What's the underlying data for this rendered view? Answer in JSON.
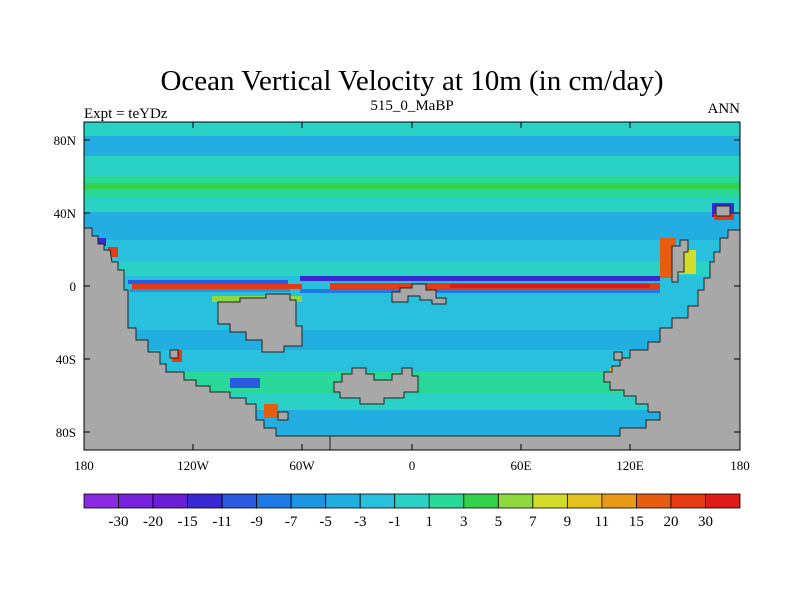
{
  "title": "Ocean Vertical Velocity at 10m (in cm/day)",
  "left_label": "Expt = teYDz",
  "center_label": "515_0_MaBP",
  "right_label": "ANN",
  "lat_ticks": [
    "80N",
    "40N",
    "0",
    "40S",
    "80S"
  ],
  "lon_ticks": [
    "180",
    "120W",
    "60W",
    "0",
    "60E",
    "120E",
    "180"
  ],
  "colorbar": {
    "labels": [
      "-30",
      "-20",
      "-15",
      "-11",
      "-9",
      "-7",
      "-5",
      "-3",
      "-1",
      "1",
      "3",
      "5",
      "7",
      "9",
      "11",
      "15",
      "20",
      "30"
    ],
    "colors": [
      "#8a2be2",
      "#7722dd",
      "#6a1fd6",
      "#3a28d2",
      "#2a5ae0",
      "#1f7ae6",
      "#1e95e2",
      "#22aee0",
      "#28c0dc",
      "#2ad2c6",
      "#2ad89a",
      "#34d24a",
      "#8ed840",
      "#d2dc2a",
      "#e6c21e",
      "#e89a16",
      "#e65c10",
      "#e63a12",
      "#e01a16"
    ]
  },
  "colors": {
    "land": "#a8a8a8",
    "ocean_base": "#28c0dc"
  }
}
